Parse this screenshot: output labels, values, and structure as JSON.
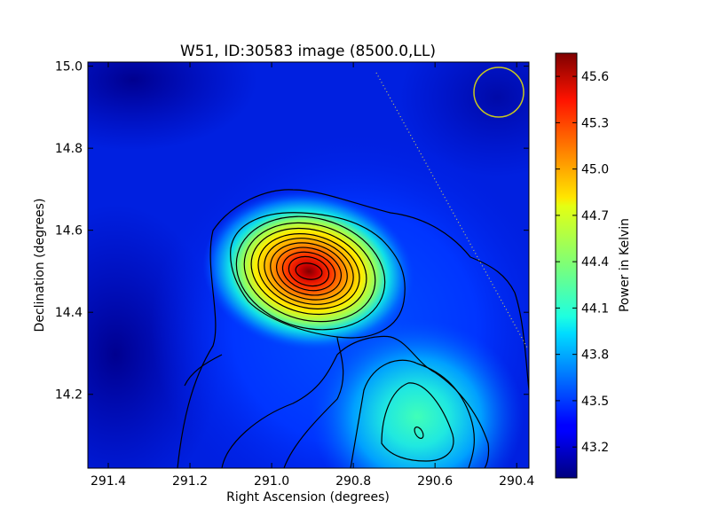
{
  "chart_data": {
    "type": "heatmap",
    "title": "W51, ID:30583 image (8500.0,LL)",
    "xlabel": "Right Ascension (degrees)",
    "ylabel": "Declination (degrees)",
    "xlim": [
      291.45,
      290.37
    ],
    "ylim": [
      14.02,
      15.01
    ],
    "xticks": [
      "291.4",
      "291.2",
      "291.0",
      "290.8",
      "290.6",
      "290.4"
    ],
    "xtick_values": [
      291.4,
      291.2,
      291.0,
      290.8,
      290.6,
      290.4
    ],
    "yticks": [
      "14.2",
      "14.4",
      "14.6",
      "14.8",
      "15.0"
    ],
    "ytick_values": [
      14.2,
      14.4,
      14.6,
      14.8,
      15.0
    ],
    "colorbar": {
      "label": "Power in Kelvin",
      "range": [
        43.0,
        45.75
      ],
      "ticks": [
        "43.2",
        "43.5",
        "43.8",
        "44.1",
        "44.4",
        "44.7",
        "45.0",
        "45.3",
        "45.6"
      ],
      "tick_values": [
        43.2,
        43.5,
        43.8,
        44.1,
        44.4,
        44.7,
        45.0,
        45.3,
        45.6
      ],
      "colormap": "jet"
    },
    "sources": [
      {
        "ra": 290.9,
        "dec": 14.5,
        "peak": 45.72,
        "kind": "main peak"
      },
      {
        "ra": 290.64,
        "dec": 14.1,
        "peak": 43.95,
        "kind": "secondary peak"
      }
    ],
    "beam_circle": {
      "ra": 290.44,
      "dec": 14.94,
      "color": "#c8c81e"
    },
    "dotted_line": {
      "from": [
        290.75,
        14.98
      ],
      "to": [
        290.38,
        14.32
      ]
    }
  }
}
